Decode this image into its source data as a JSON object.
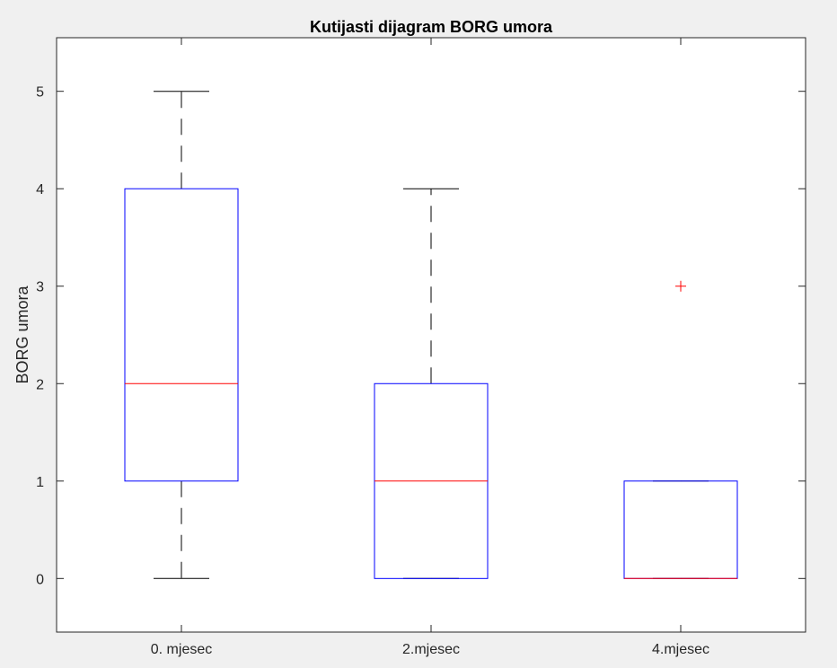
{
  "chart_data": {
    "type": "box",
    "title": "Kutijasti dijagram BORG umora",
    "xlabel": "",
    "ylabel": "BORG umora",
    "ylim": [
      -0.55,
      5.55
    ],
    "yticks": [
      0,
      1,
      2,
      3,
      4,
      5
    ],
    "grid": false,
    "categories": [
      "0. mjesec",
      "2.mjesec",
      "4.mjesec"
    ],
    "boxes": [
      {
        "min": 0,
        "q1": 1,
        "median": 2,
        "q3": 4,
        "max": 5,
        "outliers": []
      },
      {
        "min": 0,
        "q1": 0,
        "median": 1,
        "q3": 2,
        "max": 4,
        "outliers": []
      },
      {
        "min": 0,
        "q1": 0,
        "median": 0,
        "q3": 1,
        "max": 1,
        "outliers": [
          3
        ]
      }
    ],
    "colors": {
      "box": "#0000ff",
      "median": "#ff0000",
      "whisker": "#000000",
      "outlier": "#ff0000",
      "axes": "#262626",
      "plot_background": "#ffffff",
      "figure_background": "#f0f0f0"
    }
  }
}
